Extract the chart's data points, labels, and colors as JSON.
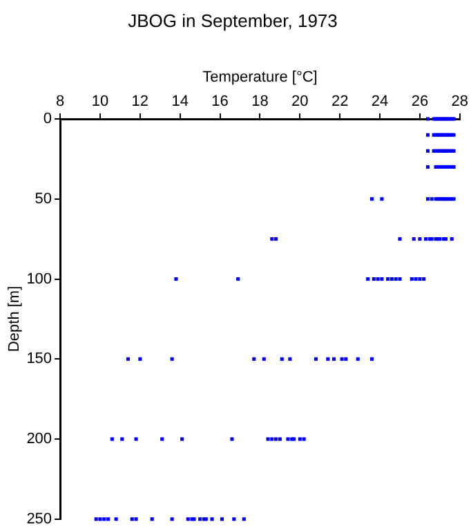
{
  "chart_data": {
    "type": "scatter",
    "title": "JBOG in September, 1973",
    "xlabel": "Temperature [°C]",
    "ylabel": "Depth [m]",
    "xlim": [
      8,
      28
    ],
    "xticks": [
      8,
      10,
      12,
      14,
      16,
      18,
      20,
      22,
      24,
      26,
      28
    ],
    "ylim": [
      250,
      0
    ],
    "yticks": [
      0,
      50,
      100,
      150,
      200,
      250
    ],
    "grid": false,
    "legend": false,
    "marker": "square",
    "series": [
      {
        "color": "#0000ff",
        "x": [
          26.4,
          26.7,
          26.8,
          26.9,
          27.0,
          27.1,
          27.2,
          27.3,
          27.4,
          27.5,
          27.6,
          27.7,
          26.4,
          26.7,
          26.8,
          26.9,
          27.0,
          27.1,
          27.2,
          27.3,
          27.4,
          27.5,
          27.6,
          27.7,
          26.4,
          26.7,
          26.8,
          26.9,
          27.0,
          27.1,
          27.2,
          27.3,
          27.4,
          27.5,
          27.6,
          27.7,
          26.4,
          26.8,
          26.9,
          27.0,
          27.1,
          27.2,
          27.3,
          27.4,
          27.5,
          27.6,
          27.7,
          23.6,
          24.1,
          26.4,
          26.6,
          26.8,
          26.9,
          27.0,
          27.1,
          27.2,
          27.3,
          27.4,
          27.5,
          27.6,
          27.7,
          18.6,
          18.8,
          25.0,
          25.7,
          26.0,
          26.3,
          26.5,
          26.6,
          26.8,
          26.9,
          27.0,
          27.2,
          27.3,
          27.6,
          13.8,
          16.9,
          23.4,
          23.7,
          23.9,
          24.1,
          24.4,
          24.6,
          24.8,
          25.0,
          25.6,
          25.8,
          26.0,
          26.2,
          11.4,
          12.0,
          13.6,
          17.7,
          18.2,
          19.1,
          19.5,
          20.8,
          21.4,
          21.7,
          22.1,
          22.3,
          22.9,
          23.6,
          10.6,
          11.1,
          11.8,
          13.1,
          14.1,
          16.6,
          18.4,
          18.6,
          18.8,
          19.0,
          19.4,
          19.6,
          19.7,
          20.0,
          20.2,
          9.8,
          10.0,
          10.2,
          10.4,
          10.8,
          11.6,
          11.8,
          12.6,
          13.6,
          14.4,
          14.6,
          14.7,
          15.0,
          15.2,
          15.3,
          15.6,
          16.1,
          16.7,
          17.2
        ],
        "values": [
          0,
          0,
          0,
          0,
          0,
          0,
          0,
          0,
          0,
          0,
          0,
          0,
          10,
          10,
          10,
          10,
          10,
          10,
          10,
          10,
          10,
          10,
          10,
          10,
          20,
          20,
          20,
          20,
          20,
          20,
          20,
          20,
          20,
          20,
          20,
          20,
          30,
          30,
          30,
          30,
          30,
          30,
          30,
          30,
          30,
          30,
          30,
          50,
          50,
          50,
          50,
          50,
          50,
          50,
          50,
          50,
          50,
          50,
          50,
          50,
          50,
          75,
          75,
          75,
          75,
          75,
          75,
          75,
          75,
          75,
          75,
          75,
          75,
          75,
          75,
          100,
          100,
          100,
          100,
          100,
          100,
          100,
          100,
          100,
          100,
          100,
          100,
          100,
          100,
          150,
          150,
          150,
          150,
          150,
          150,
          150,
          150,
          150,
          150,
          150,
          150,
          150,
          150,
          200,
          200,
          200,
          200,
          200,
          200,
          200,
          200,
          200,
          200,
          200,
          200,
          200,
          200,
          200,
          250,
          250,
          250,
          250,
          250,
          250,
          250,
          250,
          250,
          250,
          250,
          250,
          250,
          250,
          250,
          250,
          250,
          250,
          250
        ]
      }
    ]
  }
}
